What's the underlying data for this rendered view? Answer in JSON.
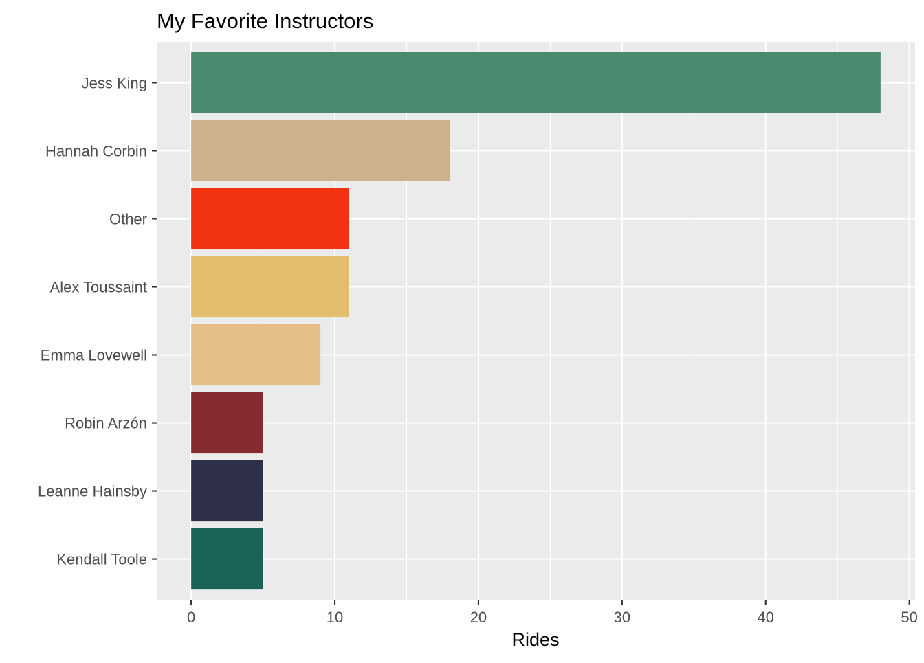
{
  "chart_data": {
    "type": "bar",
    "orientation": "horizontal",
    "title": "My Favorite Instructors",
    "xlabel": "Rides",
    "ylabel": "",
    "categories": [
      "Jess King",
      "Hannah Corbin",
      "Other",
      "Alex Toussaint",
      "Emma Lovewell",
      "Robin Arzón",
      "Leanne Hainsby",
      "Kendall Toole"
    ],
    "values": [
      48,
      18,
      11,
      11,
      9,
      5,
      5,
      5
    ],
    "colors": [
      "#4A8B6F",
      "#CBB28D",
      "#F23311",
      "#E1BD6D",
      "#E4BE85",
      "#852A31",
      "#2F314A",
      "#1A6358"
    ],
    "xlim": [
      -2.4,
      50.4
    ],
    "x_ticks": [
      0,
      10,
      20,
      30,
      40,
      50
    ],
    "x_minor_ticks": [
      5,
      15,
      25,
      35,
      45
    ],
    "grid": true,
    "legend": "none",
    "panel_background": "#EBEBEB",
    "grid_color": "#FFFFFF"
  }
}
